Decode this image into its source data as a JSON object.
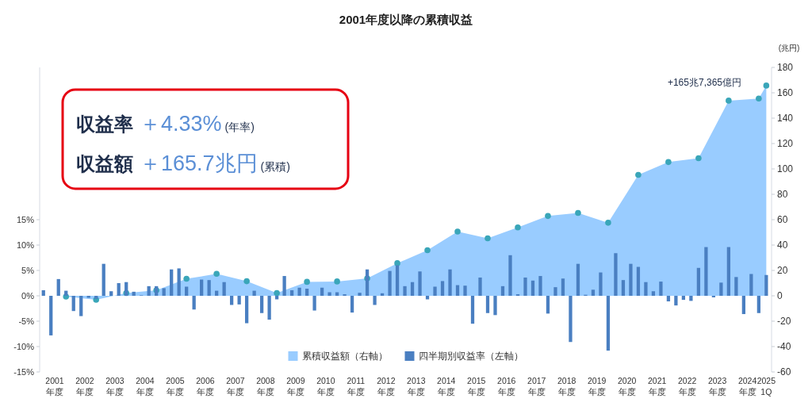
{
  "chart_data": {
    "type": "bar",
    "title": "2001年度以降の累積収益",
    "y2label": "(兆円)",
    "x": [
      2001.125,
      2001.375,
      2001.625,
      2001.875,
      2002.125,
      2002.375,
      2002.625,
      2002.875,
      2003.125,
      2003.375,
      2003.625,
      2003.875,
      2004.125,
      2004.375,
      2004.625,
      2004.875,
      2005.125,
      2005.375,
      2005.625,
      2005.875,
      2006.125,
      2006.375,
      2006.625,
      2006.875,
      2007.125,
      2007.375,
      2007.625,
      2007.875,
      2008.125,
      2008.375,
      2008.625,
      2008.875,
      2009.125,
      2009.375,
      2009.625,
      2009.875,
      2010.125,
      2010.375,
      2010.625,
      2010.875,
      2011.125,
      2011.375,
      2011.625,
      2011.875,
      2012.125,
      2012.375,
      2012.625,
      2012.875,
      2013.125,
      2013.375,
      2013.625,
      2013.875,
      2014.125,
      2014.375,
      2014.625,
      2014.875,
      2015.125,
      2015.375,
      2015.625,
      2015.875,
      2016.125,
      2016.375,
      2016.625,
      2016.875,
      2017.125,
      2017.375,
      2017.625,
      2017.875,
      2018.125,
      2018.375,
      2018.625,
      2018.875,
      2019.125,
      2019.375,
      2019.625,
      2019.875,
      2020.125,
      2020.375,
      2020.625,
      2020.875,
      2021.125,
      2021.375,
      2021.625,
      2021.875,
      2022.125,
      2022.375,
      2022.625,
      2022.875,
      2023.125,
      2023.375,
      2023.625,
      2023.875,
      2024.125,
      2024.375,
      2024.625,
      2024.875,
      2025.125
    ],
    "series": [
      {
        "name": "累積収益額（右軸）",
        "type": "area",
        "axis": "y2",
        "color": "#99ccff",
        "x": [
          2001.875,
          2002.875,
          2003.875,
          2004.875,
          2005.875,
          2006.875,
          2007.875,
          2008.875,
          2009.875,
          2010.875,
          2011.875,
          2012.875,
          2013.875,
          2014.875,
          2015.875,
          2016.875,
          2017.875,
          2018.875,
          2019.875,
          2020.875,
          2021.875,
          2022.875,
          2023.875,
          2024.875,
          2025.125
        ],
        "values": [
          -0.6,
          -3.1,
          2.2,
          4.4,
          13.4,
          17.3,
          11.5,
          2.2,
          11.0,
          11.3,
          13.7,
          25.7,
          35.9,
          50.6,
          45.3,
          53.9,
          62.9,
          65.3,
          57.6,
          95.3,
          105.4,
          108.4,
          153.8,
          155.5,
          165.7
        ]
      },
      {
        "name": "四半期別収益率（左軸）",
        "color": "#4a7fc1",
        "values": [
          1.1,
          -7.8,
          3.3,
          1.0,
          -3.0,
          -4.0,
          -0.4,
          -0.6,
          6.3,
          0.9,
          2.5,
          2.7,
          0.8,
          0.1,
          1.9,
          1.9,
          1.5,
          5.2,
          5.4,
          1.8,
          -2.7,
          3.2,
          3.1,
          1.0,
          2.7,
          -1.8,
          -1.7,
          -5.4,
          1.0,
          -3.4,
          -4.7,
          -0.7,
          3.9,
          1.1,
          1.6,
          1.4,
          -2.9,
          1.6,
          0.7,
          0.7,
          0.3,
          -3.3,
          0.6,
          5.2,
          -1.8,
          0.5,
          4.9,
          6.0,
          1.9,
          2.7,
          4.8,
          -0.7,
          1.8,
          2.9,
          5.2,
          2.1,
          2.0,
          -5.5,
          3.6,
          -3.4,
          -3.8,
          1.9,
          8.0,
          0.3,
          3.6,
          3.0,
          3.9,
          -3.5,
          1.7,
          3.4,
          -9.1,
          6.3,
          0.2,
          1.2,
          4.6,
          -10.8,
          8.4,
          3.1,
          6.3,
          5.7,
          2.7,
          0.9,
          2.8,
          -1.1,
          -1.9,
          -0.8,
          -1.0,
          5.5,
          9.6,
          -0.3,
          2.6,
          9.6,
          3.7,
          -3.6,
          4.3,
          -3.4,
          4.1
        ]
      },
      {
        "type": "scatter",
        "axis": "y2",
        "marker": "circle",
        "color": "#3aa6b9",
        "x": [
          2001.875,
          2002.875,
          2003.875,
          2004.875,
          2005.875,
          2006.875,
          2007.875,
          2008.875,
          2009.875,
          2010.875,
          2011.875,
          2012.875,
          2013.875,
          2014.875,
          2015.875,
          2016.875,
          2017.875,
          2018.875,
          2019.875,
          2020.875,
          2021.875,
          2022.875,
          2023.875,
          2024.875,
          2025.125
        ],
        "values": [
          -0.6,
          -3.1,
          2.2,
          4.4,
          13.4,
          17.3,
          11.5,
          2.2,
          11.0,
          11.3,
          13.7,
          25.7,
          35.9,
          50.6,
          45.3,
          53.9,
          62.9,
          65.3,
          57.6,
          95.3,
          105.4,
          108.4,
          153.8,
          155.5,
          165.7
        ]
      }
    ],
    "xlim": [
      2001.0,
      2025.3
    ],
    "xticks": [
      {
        "value": 2001.5,
        "label": "2001\n年度"
      },
      {
        "value": 2002.5,
        "label": "2002\n年度"
      },
      {
        "value": 2003.5,
        "label": "2003\n年度"
      },
      {
        "value": 2004.5,
        "label": "2004\n年度"
      },
      {
        "value": 2005.5,
        "label": "2005\n年度"
      },
      {
        "value": 2006.5,
        "label": "2006\n年度"
      },
      {
        "value": 2007.5,
        "label": "2007\n年度"
      },
      {
        "value": 2008.5,
        "label": "2008\n年度"
      },
      {
        "value": 2009.5,
        "label": "2009\n年度"
      },
      {
        "value": 2010.5,
        "label": "2010\n年度"
      },
      {
        "value": 2011.5,
        "label": "2011\n年度"
      },
      {
        "value": 2012.5,
        "label": "2012\n年度"
      },
      {
        "value": 2013.5,
        "label": "2013\n年度"
      },
      {
        "value": 2014.5,
        "label": "2014\n年度"
      },
      {
        "value": 2015.5,
        "label": "2015\n年度"
      },
      {
        "value": 2016.5,
        "label": "2016\n年度"
      },
      {
        "value": 2017.5,
        "label": "2017\n年度"
      },
      {
        "value": 2018.5,
        "label": "2018\n年度"
      },
      {
        "value": 2019.5,
        "label": "2019\n年度"
      },
      {
        "value": 2020.5,
        "label": "2020\n年度"
      },
      {
        "value": 2021.5,
        "label": "2021\n年度"
      },
      {
        "value": 2022.5,
        "label": "2022\n年度"
      },
      {
        "value": 2023.5,
        "label": "2023\n年度"
      },
      {
        "value": 2024.5,
        "label": "2024\n年度"
      },
      {
        "value": 2025.125,
        "label": "2025\n1Q"
      }
    ],
    "ylim": [
      -15,
      45
    ],
    "yticks": [
      {
        "value": -15,
        "label": "-15%"
      },
      {
        "value": -10,
        "label": "-10%"
      },
      {
        "value": -5,
        "label": "-5%"
      },
      {
        "value": 0,
        "label": "0%"
      },
      {
        "value": 5,
        "label": "5%"
      },
      {
        "value": 10,
        "label": "10%"
      },
      {
        "value": 15,
        "label": "15%"
      }
    ],
    "y2lim": [
      -60,
      180
    ],
    "y2ticks": [
      -60,
      -40,
      -20,
      0,
      20,
      40,
      60,
      80,
      100,
      120,
      140,
      160,
      180
    ],
    "legend": "bottom",
    "annotations": [
      "収益率",
      "＋4.33%",
      "(年率)",
      "収益額",
      "＋165.7兆円",
      "(累積)",
      "+165兆7,365億円"
    ]
  }
}
